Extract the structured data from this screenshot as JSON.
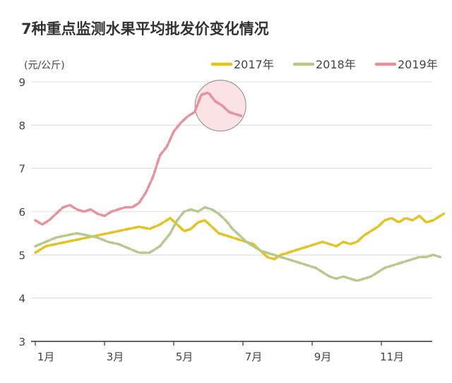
{
  "chart_data": {
    "type": "line",
    "title": "7种重点监测水果平均批发价变化情况",
    "ylabel": "(元/公斤)",
    "ylim": [
      3,
      9
    ],
    "yticks": [
      3,
      4,
      5,
      6,
      7,
      8,
      9
    ],
    "xlim": [
      1,
      12.8
    ],
    "xticks": [
      {
        "value": 1,
        "label": "1月"
      },
      {
        "value": 3,
        "label": "3月"
      },
      {
        "value": 5,
        "label": "5月"
      },
      {
        "value": 7,
        "label": "7月"
      },
      {
        "value": 9,
        "label": "9月"
      },
      {
        "value": 11,
        "label": "11月"
      }
    ],
    "grid": true,
    "legend_position": "top-right",
    "series": [
      {
        "name": "2017年",
        "color": "#e6c21d",
        "x": [
          1.0,
          1.3,
          1.6,
          1.9,
          2.2,
          2.5,
          2.8,
          3.1,
          3.4,
          3.7,
          4.0,
          4.3,
          4.6,
          4.9,
          5.1,
          5.3,
          5.5,
          5.7,
          5.9,
          6.1,
          6.3,
          6.5,
          6.7,
          6.9,
          7.1,
          7.3,
          7.5,
          7.7,
          7.9,
          8.1,
          8.3,
          8.5,
          8.7,
          8.9,
          9.1,
          9.3,
          9.5,
          9.7,
          9.9,
          10.1,
          10.3,
          10.5,
          10.7,
          10.9,
          11.1,
          11.3,
          11.5,
          11.7,
          11.9,
          12.1,
          12.3,
          12.5,
          12.7,
          12.8
        ],
        "y": [
          5.05,
          5.2,
          5.25,
          5.3,
          5.35,
          5.4,
          5.45,
          5.5,
          5.55,
          5.6,
          5.65,
          5.6,
          5.7,
          5.85,
          5.7,
          5.55,
          5.6,
          5.75,
          5.8,
          5.65,
          5.5,
          5.45,
          5.4,
          5.35,
          5.3,
          5.25,
          5.1,
          4.95,
          4.9,
          5.0,
          5.05,
          5.1,
          5.15,
          5.2,
          5.25,
          5.3,
          5.25,
          5.2,
          5.3,
          5.25,
          5.3,
          5.45,
          5.55,
          5.65,
          5.8,
          5.85,
          5.75,
          5.85,
          5.8,
          5.9,
          5.75,
          5.8,
          5.9,
          5.95
        ]
      },
      {
        "name": "2018年",
        "color": "#b5c98b",
        "x": [
          1.0,
          1.3,
          1.6,
          1.9,
          2.2,
          2.5,
          2.8,
          3.1,
          3.4,
          3.7,
          4.0,
          4.3,
          4.6,
          4.9,
          5.1,
          5.3,
          5.5,
          5.7,
          5.9,
          6.1,
          6.3,
          6.5,
          6.7,
          6.9,
          7.1,
          7.3,
          7.5,
          7.7,
          7.9,
          8.1,
          8.3,
          8.5,
          8.7,
          8.9,
          9.1,
          9.3,
          9.5,
          9.7,
          9.9,
          10.1,
          10.3,
          10.5,
          10.7,
          10.9,
          11.1,
          11.3,
          11.5,
          11.7,
          11.9,
          12.1,
          12.3,
          12.5,
          12.7
        ],
        "y": [
          5.2,
          5.3,
          5.4,
          5.45,
          5.5,
          5.45,
          5.4,
          5.3,
          5.25,
          5.15,
          5.05,
          5.05,
          5.2,
          5.5,
          5.8,
          6.0,
          6.05,
          6.0,
          6.1,
          6.05,
          5.95,
          5.8,
          5.6,
          5.45,
          5.3,
          5.2,
          5.1,
          5.05,
          5.0,
          4.95,
          4.9,
          4.85,
          4.8,
          4.75,
          4.7,
          4.6,
          4.5,
          4.45,
          4.5,
          4.45,
          4.4,
          4.45,
          4.5,
          4.6,
          4.7,
          4.75,
          4.8,
          4.85,
          4.9,
          4.95,
          4.95,
          5.0,
          4.95
        ]
      },
      {
        "name": "2019年",
        "color": "#e8919a",
        "x": [
          1.0,
          1.2,
          1.4,
          1.6,
          1.8,
          2.0,
          2.2,
          2.4,
          2.6,
          2.8,
          3.0,
          3.2,
          3.4,
          3.6,
          3.8,
          4.0,
          4.2,
          4.4,
          4.6,
          4.8,
          5.0,
          5.2,
          5.4,
          5.6,
          5.8,
          6.0,
          6.2,
          6.4,
          6.6,
          6.8,
          7.0
        ],
        "y": [
          5.8,
          5.7,
          5.8,
          5.95,
          6.1,
          6.15,
          6.05,
          6.0,
          6.05,
          5.95,
          5.9,
          6.0,
          6.05,
          6.1,
          6.1,
          6.2,
          6.45,
          6.8,
          7.3,
          7.5,
          7.85,
          8.05,
          8.2,
          8.3,
          8.7,
          8.75,
          8.55,
          8.45,
          8.3,
          8.25,
          8.2
        ]
      }
    ]
  },
  "colors": {
    "title": "#333333",
    "axis_text": "#444444",
    "grid": "#dddddd",
    "highlight_fill": "#fbe2e5",
    "highlight_stroke": "#999999"
  }
}
